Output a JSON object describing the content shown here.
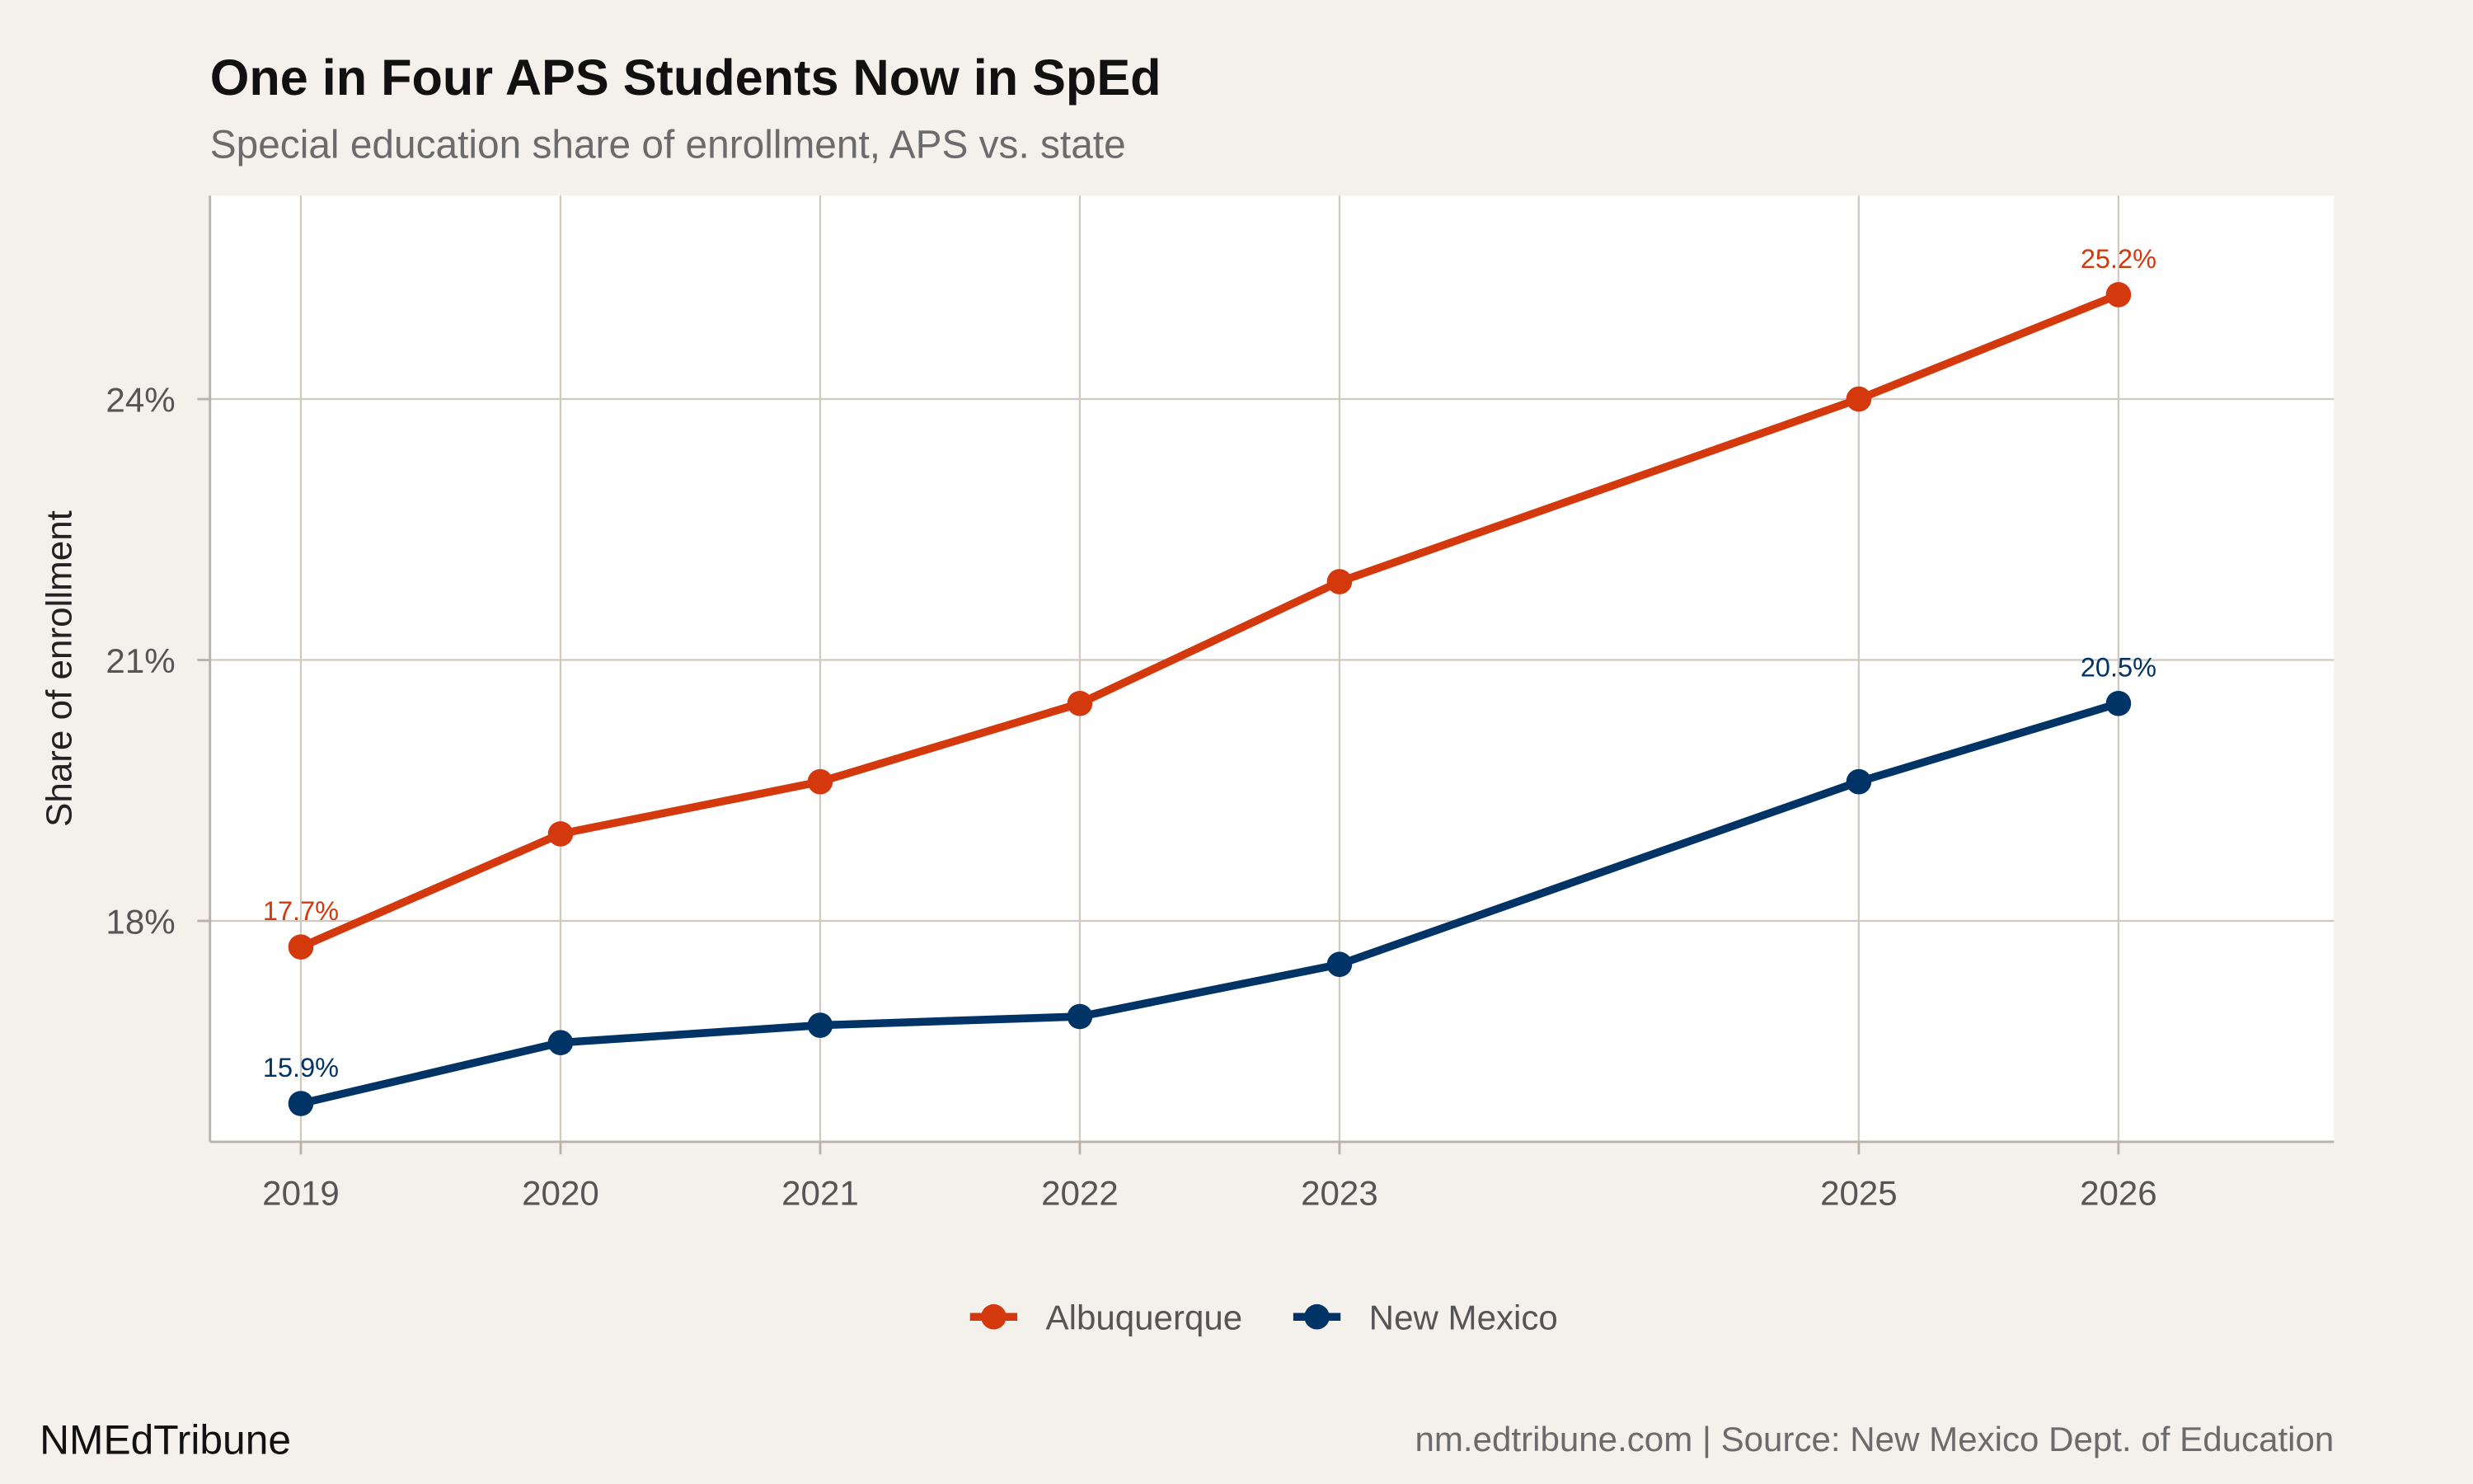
{
  "chart_data": {
    "type": "line",
    "title": "One in Four APS Students Now in SpEd",
    "subtitle": "Special education share of enrollment, APS vs. state",
    "xlabel": "",
    "ylabel": "Share of enrollment",
    "x": [
      2019,
      2020,
      2021,
      2022,
      2023,
      2025,
      2026
    ],
    "x_tick_labels": [
      "2019",
      "2020",
      "2021",
      "2022",
      "2023",
      "2025",
      "2026"
    ],
    "y_ticks": [
      18,
      21,
      24
    ],
    "y_tick_labels": [
      "18%",
      "21%",
      "24%"
    ],
    "xlim": [
      2018.65,
      2026.83
    ],
    "ylim": [
      15.46,
      26.34
    ],
    "grid": true,
    "legend_position": "bottom",
    "series": [
      {
        "name": "Albuquerque",
        "color": "#D4380D",
        "values": [
          17.7,
          19.0,
          19.6,
          20.5,
          21.9,
          24.0,
          25.2
        ],
        "data_labels": [
          {
            "index": 0,
            "text": "17.7%"
          },
          {
            "index": 6,
            "text": "25.2%"
          }
        ]
      },
      {
        "name": "New Mexico",
        "color": "#003366",
        "values": [
          15.9,
          16.6,
          16.8,
          16.9,
          17.5,
          19.6,
          20.5
        ],
        "data_labels": [
          {
            "index": 0,
            "text": "15.9%"
          },
          {
            "index": 6,
            "text": "20.5%"
          }
        ]
      }
    ]
  },
  "footer": {
    "brand": "NMEdTribune",
    "source": "nm.edtribune.com | Source: New Mexico Dept. of Education"
  },
  "colors": {
    "background": "#F4F1EC",
    "panel": "#FFFFFF",
    "grid": "#CFC9C0"
  }
}
